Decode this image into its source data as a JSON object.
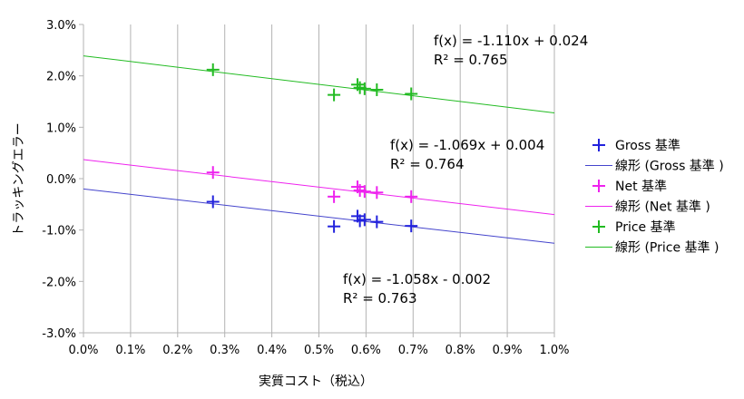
{
  "chart_data": {
    "type": "scatter",
    "xlabel": "実質コスト（税込）",
    "ylabel": "トラッキングエラー",
    "xlim": [
      0.0,
      1.0
    ],
    "ylim": [
      -3.0,
      3.0
    ],
    "x_tick_labels": [
      "0.0%",
      "0.1%",
      "0.2%",
      "0.3%",
      "0.4%",
      "0.5%",
      "0.6%",
      "0.7%",
      "0.8%",
      "0.9%",
      "1.0%"
    ],
    "y_tick_labels": [
      "3.0%",
      "2.0%",
      "1.0%",
      "0.0%",
      "-1.0%",
      "-2.0%",
      "-3.0%"
    ],
    "grid": "vertical",
    "legend_position": "right",
    "series": [
      {
        "name": "Gross 基準",
        "color": "#2222dd",
        "x": [
          0.275,
          0.532,
          0.582,
          0.587,
          0.597,
          0.623,
          0.696
        ],
        "y": [
          -0.45,
          -0.93,
          -0.73,
          -0.82,
          -0.8,
          -0.84,
          -0.92
        ],
        "trend": {
          "name": "線形 (Gross 基準 )",
          "slope": -1.058,
          "intercept": -0.2,
          "color": "#4444cc"
        },
        "equation": {
          "line1": "f(x) = -1.058x - 0.002",
          "line2": "R² = 0.763"
        }
      },
      {
        "name": "Net 基準",
        "color": "#ee22ee",
        "x": [
          0.275,
          0.532,
          0.582,
          0.587,
          0.597,
          0.623,
          0.696
        ],
        "y": [
          0.12,
          -0.35,
          -0.16,
          -0.23,
          -0.25,
          -0.27,
          -0.35
        ],
        "trend": {
          "name": "線形 (Net 基準 )",
          "slope": -1.069,
          "intercept": 0.37,
          "color": "#ee22ee"
        },
        "equation": {
          "line1": "f(x) = -1.069x + 0.004",
          "line2": "R² = 0.764"
        }
      },
      {
        "name": "Price 基準",
        "color": "#22bb22",
        "x": [
          0.275,
          0.532,
          0.582,
          0.587,
          0.597,
          0.623,
          0.696
        ],
        "y": [
          2.12,
          1.63,
          1.83,
          1.77,
          1.75,
          1.73,
          1.65
        ],
        "trend": {
          "name": "線形 (Price 基準 )",
          "slope": -1.11,
          "intercept": 2.39,
          "color": "#22bb22"
        },
        "equation": {
          "line1": "f(x) = -1.110x + 0.024",
          "line2": "R² = 0.765"
        }
      }
    ]
  }
}
